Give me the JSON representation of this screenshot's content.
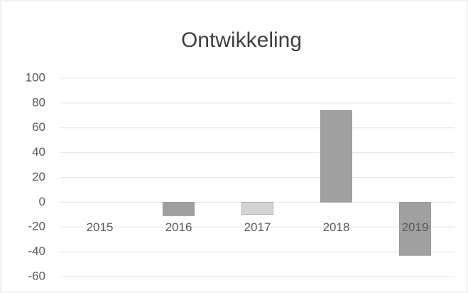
{
  "chart_data": {
    "type": "bar",
    "title": "Ontwikkeling",
    "categories": [
      "2015",
      "2016",
      "2017",
      "2018",
      "2019"
    ],
    "values": [
      0,
      -11,
      -10,
      74,
      -43
    ],
    "colors": [
      "#a6a6a6",
      "#a0a0a0",
      "#d4d4d4",
      "#a0a0a0",
      "#a0a0a0"
    ],
    "ylim": [
      -60,
      100
    ],
    "yticks": [
      -60,
      -40,
      -20,
      0,
      20,
      40,
      60,
      80,
      100
    ],
    "grid": true
  }
}
